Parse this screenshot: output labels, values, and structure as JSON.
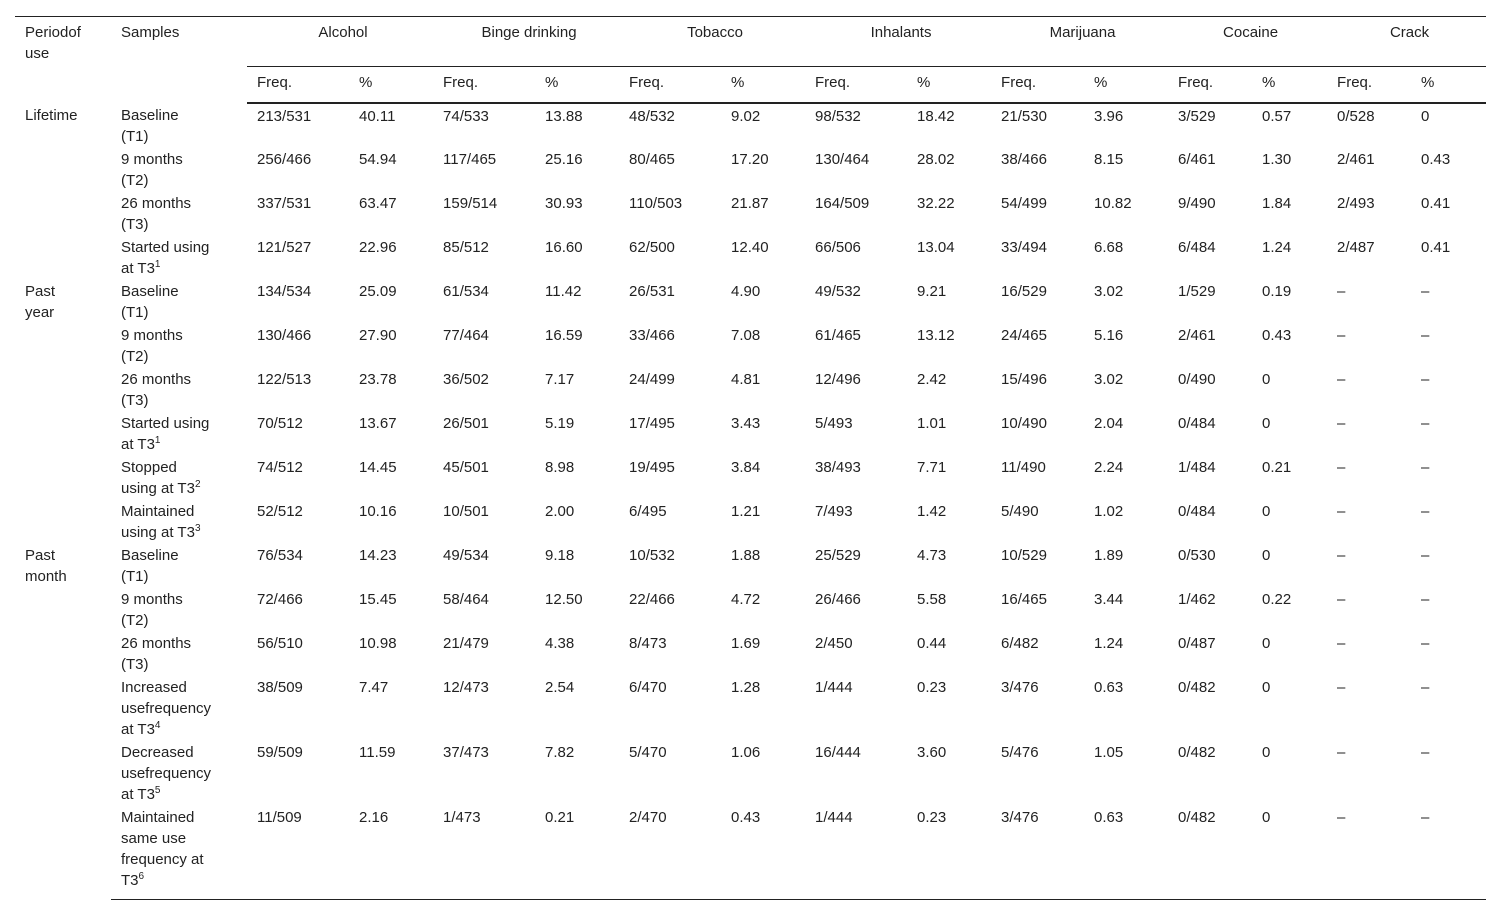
{
  "table": {
    "header": {
      "period": [
        "Periodof",
        "use"
      ],
      "samples": "Samples",
      "substances": [
        "Alcohol",
        "Binge drinking",
        "Tobacco",
        "Inhalants",
        "Marijuana",
        "Cocaine",
        "Crack"
      ],
      "subcolumns": [
        "Freq.",
        "%"
      ]
    },
    "groups": [
      {
        "period": [
          "Lifetime"
        ],
        "rows": [
          {
            "sample": [
              "Baseline",
              "(T1)"
            ],
            "values": [
              "213/531",
              "40.11",
              "74/533",
              "13.88",
              "48/532",
              "9.02",
              "98/532",
              "18.42",
              "21/530",
              "3.96",
              "3/529",
              "0.57",
              "0/528",
              "0"
            ]
          },
          {
            "sample": [
              "9 months",
              "(T2)"
            ],
            "values": [
              "256/466",
              "54.94",
              "117/465",
              "25.16",
              "80/465",
              "17.20",
              "130/464",
              "28.02",
              "38/466",
              "8.15",
              "6/461",
              "1.30",
              "2/461",
              "0.43"
            ]
          },
          {
            "sample": [
              "26 months",
              "(T3)"
            ],
            "values": [
              "337/531",
              "63.47",
              "159/514",
              "30.93",
              "110/503",
              "21.87",
              "164/509",
              "32.22",
              "54/499",
              "10.82",
              "9/490",
              "1.84",
              "2/493",
              "0.41"
            ]
          },
          {
            "sample": [
              "Started using",
              "at T3"
            ],
            "sup": "1",
            "values": [
              "121/527",
              "22.96",
              "85/512",
              "16.60",
              "62/500",
              "12.40",
              "66/506",
              "13.04",
              "33/494",
              "6.68",
              "6/484",
              "1.24",
              "2/487",
              "0.41"
            ]
          }
        ]
      },
      {
        "period": [
          "Past",
          "year"
        ],
        "rows": [
          {
            "sample": [
              "Baseline",
              "(T1)"
            ],
            "values": [
              "134/534",
              "25.09",
              "61/534",
              "11.42",
              "26/531",
              "4.90",
              "49/532",
              "9.21",
              "16/529",
              "3.02",
              "1/529",
              "0.19",
              "–",
              "–"
            ]
          },
          {
            "sample": [
              "9 months",
              "(T2)"
            ],
            "values": [
              "130/466",
              "27.90",
              "77/464",
              "16.59",
              "33/466",
              "7.08",
              "61/465",
              "13.12",
              "24/465",
              "5.16",
              "2/461",
              "0.43",
              "–",
              "–"
            ]
          },
          {
            "sample": [
              "26 months",
              "(T3)"
            ],
            "values": [
              "122/513",
              "23.78",
              "36/502",
              "7.17",
              "24/499",
              "4.81",
              "12/496",
              "2.42",
              "15/496",
              "3.02",
              "0/490",
              "0",
              "–",
              "–"
            ]
          },
          {
            "sample": [
              "Started using",
              "at T3"
            ],
            "sup": "1",
            "values": [
              "70/512",
              "13.67",
              "26/501",
              "5.19",
              "17/495",
              "3.43",
              "5/493",
              "1.01",
              "10/490",
              "2.04",
              "0/484",
              "0",
              "–",
              "–"
            ]
          },
          {
            "sample": [
              "Stopped",
              "using at T3"
            ],
            "sup": "2",
            "values": [
              "74/512",
              "14.45",
              "45/501",
              "8.98",
              "19/495",
              "3.84",
              "38/493",
              "7.71",
              "11/490",
              "2.24",
              "1/484",
              "0.21",
              "–",
              "–"
            ]
          },
          {
            "sample": [
              "Maintained",
              "using at T3"
            ],
            "sup": "3",
            "values": [
              "52/512",
              "10.16",
              "10/501",
              "2.00",
              "6/495",
              "1.21",
              "7/493",
              "1.42",
              "5/490",
              "1.02",
              "0/484",
              "0",
              "–",
              "–"
            ]
          }
        ]
      },
      {
        "period": [
          "Past",
          "month"
        ],
        "rows": [
          {
            "sample": [
              "Baseline",
              "(T1)"
            ],
            "values": [
              "76/534",
              "14.23",
              "49/534",
              "9.18",
              "10/532",
              "1.88",
              "25/529",
              "4.73",
              "10/529",
              "1.89",
              "0/530",
              "0",
              "–",
              "–"
            ]
          },
          {
            "sample": [
              "9 months",
              "(T2)"
            ],
            "values": [
              "72/466",
              "15.45",
              "58/464",
              "12.50",
              "22/466",
              "4.72",
              "26/466",
              "5.58",
              "16/465",
              "3.44",
              "1/462",
              "0.22",
              "–",
              "–"
            ]
          },
          {
            "sample": [
              "26 months",
              "(T3)"
            ],
            "values": [
              "56/510",
              "10.98",
              "21/479",
              "4.38",
              "8/473",
              "1.69",
              "2/450",
              "0.44",
              "6/482",
              "1.24",
              "0/487",
              "0",
              "–",
              "–"
            ]
          },
          {
            "sample": [
              "Increased",
              "usefrequency",
              "at T3"
            ],
            "sup": "4",
            "values": [
              "38/509",
              "7.47",
              "12/473",
              "2.54",
              "6/470",
              "1.28",
              "1/444",
              "0.23",
              "3/476",
              "0.63",
              "0/482",
              "0",
              "–",
              "–"
            ]
          },
          {
            "sample": [
              "Decreased",
              "usefrequency",
              "at T3"
            ],
            "sup": "5",
            "values": [
              "59/509",
              "11.59",
              "37/473",
              "7.82",
              "5/470",
              "1.06",
              "16/444",
              "3.60",
              "5/476",
              "1.05",
              "0/482",
              "0",
              "–",
              "–"
            ]
          },
          {
            "sample": [
              "Maintained",
              "same use",
              "frequency at",
              "T3"
            ],
            "sup": "6",
            "values": [
              "11/509",
              "2.16",
              "1/473",
              "0.21",
              "2/470",
              "0.43",
              "1/444",
              "0.23",
              "3/476",
              "0.63",
              "0/482",
              "0",
              "–",
              "–"
            ]
          }
        ]
      }
    ]
  }
}
